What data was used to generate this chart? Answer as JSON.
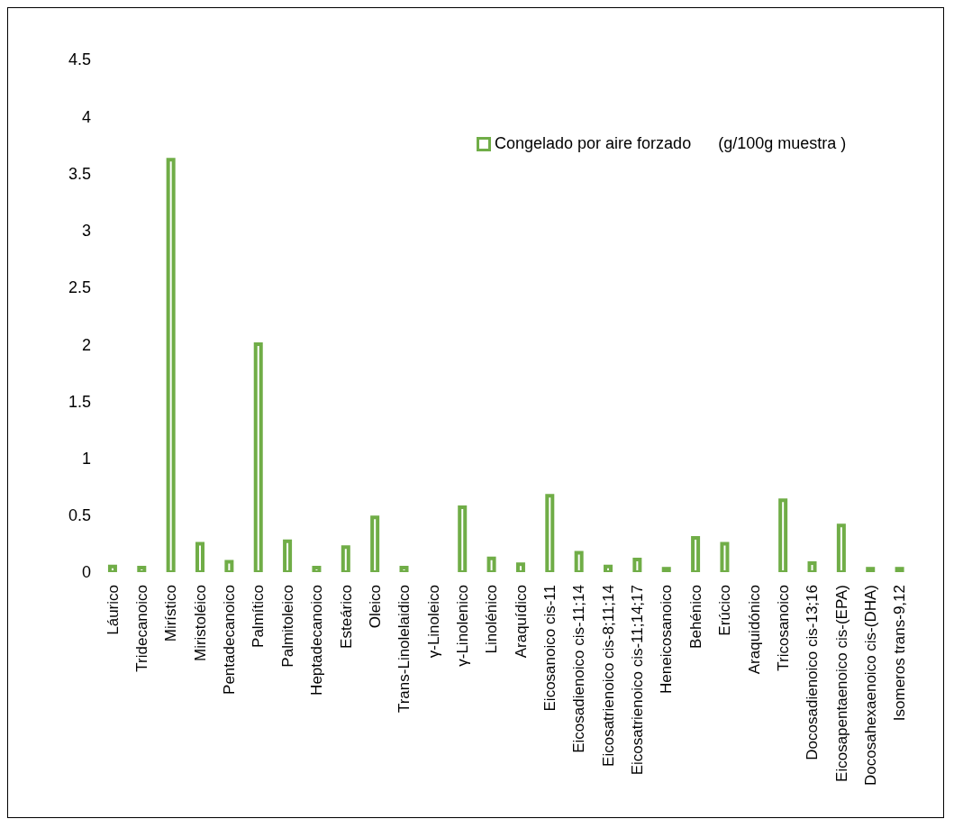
{
  "chart_data": {
    "type": "bar",
    "categories": [
      "Láurico",
      "Tridecanoico",
      "Mirístico",
      "Miristoléico",
      "Pentadecanoico",
      "Palmítico",
      "Palmitoleico",
      "Heptadecanoico",
      "Esteárico",
      "Oleico",
      "Trans-Linolelaidico",
      "γ-Linoleico",
      "γ-Linolenico",
      "Linolénico",
      "Araquídico",
      "Eicosanoico cis-11",
      "Eicosadienoico cis-11;14",
      "Eicosatrienoico cis-8;11;14",
      "Eicosatrienoico cis-11;14;17",
      "Heneicosanoico",
      "Behénico",
      "Erúcico",
      "Araquidónico",
      "Tricosanoico",
      "Docosadienoico cis-13;16",
      "Eicosapentaenoico cis-(EPA)",
      "Docosahexaenoico cis-(DHA)",
      "Isomeros trans-9,12"
    ],
    "series": [
      {
        "name": "Congelado por aire forzado      (g/100g muestra )",
        "color": "#70ad47",
        "values": [
          0.05,
          0.04,
          3.62,
          0.25,
          0.09,
          2.0,
          0.27,
          0.04,
          0.22,
          0.48,
          0.04,
          null,
          0.57,
          0.12,
          0.07,
          0.67,
          0.17,
          0.05,
          0.11,
          0.03,
          0.3,
          0.25,
          null,
          0.63,
          0.08,
          0.41,
          0.03,
          0.03
        ]
      }
    ],
    "ylim": [
      0,
      4.5
    ],
    "yticks": [
      0,
      0.5,
      1,
      1.5,
      2,
      2.5,
      3,
      3.5,
      4,
      4.5
    ],
    "grid": false,
    "legend": "top right"
  }
}
